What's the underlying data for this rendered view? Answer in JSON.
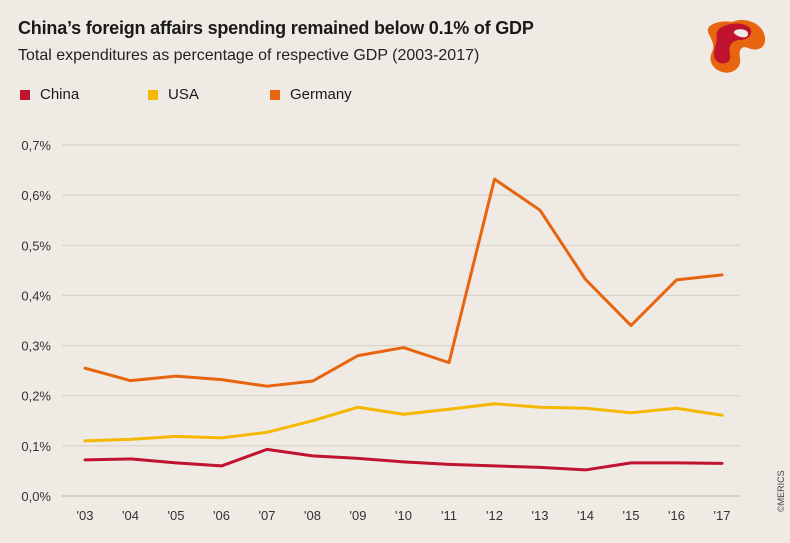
{
  "header": {
    "title": "China’s foreign affairs spending remained below 0.1% of GDP",
    "subtitle": "Total expenditures as percentage of respective GDP (2003-2017)"
  },
  "credit": "©MERICS",
  "colors": {
    "China": "#c0132f",
    "USA": "#f5b800",
    "Germany": "#e8650f",
    "grid": "#d4cfc9"
  },
  "chart_data": {
    "type": "line",
    "x": [
      "'03",
      "'04",
      "'05",
      "'06",
      "'07",
      "'08",
      "'09",
      "'10",
      "'11",
      "'12",
      "'13",
      "'14",
      "'15",
      "'16",
      "'17"
    ],
    "ylim": [
      0,
      0.7
    ],
    "yticks": [
      0,
      0.1,
      0.2,
      0.3,
      0.4,
      0.5,
      0.6,
      0.7
    ],
    "ytick_labels": [
      "0,0%",
      "0,1%",
      "0,2%",
      "0,3%",
      "0,4%",
      "0,5%",
      "0,6%",
      "0,7%"
    ],
    "legend_position": "top-left",
    "grid": true,
    "series": [
      {
        "name": "China",
        "color": "#c0132f",
        "values": [
          0.072,
          0.074,
          0.066,
          0.06,
          0.093,
          0.08,
          0.075,
          0.068,
          0.063,
          0.06,
          0.057,
          0.052,
          0.066,
          0.066,
          0.065
        ]
      },
      {
        "name": "USA",
        "color": "#f5b800",
        "values": [
          0.11,
          0.113,
          0.119,
          0.116,
          0.127,
          0.15,
          0.177,
          0.163,
          0.173,
          0.184,
          0.177,
          0.175,
          0.166,
          0.175,
          0.161
        ]
      },
      {
        "name": "Germany",
        "color": "#e8650f",
        "values": [
          0.255,
          0.23,
          0.239,
          0.232,
          0.219,
          0.229,
          0.28,
          0.296,
          0.266,
          0.632,
          0.57,
          0.432,
          0.34,
          0.431,
          0.441
        ]
      }
    ]
  }
}
